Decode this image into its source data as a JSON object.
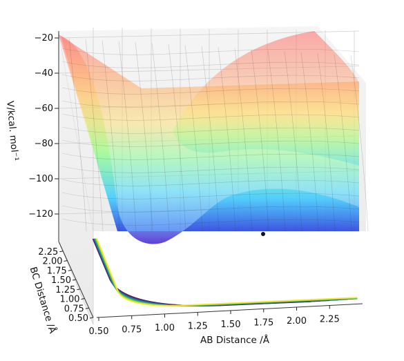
{
  "chart_data": {
    "type": "surface3d",
    "title": "",
    "xlabel": "AB Distance /Å",
    "ylabel": "BC Distance /Å",
    "zlabel": "V/kcal. mol⁻¹",
    "xlim": [
      0.5,
      2.5
    ],
    "ylim": [
      0.5,
      2.5
    ],
    "zlim": [
      -135,
      -20
    ],
    "xticks": [
      "0.50",
      "0.75",
      "1.00",
      "1.25",
      "1.50",
      "1.75",
      "2.00",
      "2.25"
    ],
    "yticks": [
      "0.50",
      "0.75",
      "1.00",
      "1.25",
      "1.50",
      "1.75",
      "2.00",
      "2.25"
    ],
    "zticks": [
      "−20",
      "−40",
      "−60",
      "−80",
      "−100",
      "−120"
    ],
    "zticks_values": [
      -20,
      -40,
      -60,
      -80,
      -100,
      -120
    ],
    "colormap": "jet (surface, alpha ~0.4) / viridis (floor contours)",
    "grid": true,
    "marker": {
      "ab": 1.55,
      "bc": 1.9,
      "label": ""
    },
    "surface_description": "LEPS-like potential energy surface with reactant and product valleys near -130 kcal/mol and a barrier ridge",
    "contour_levels": 14
  },
  "colors": {
    "surface_low": "#0b3cff",
    "surface_high": "#ff3d3d",
    "contour_low": "#440154",
    "contour_high": "#fde725"
  }
}
